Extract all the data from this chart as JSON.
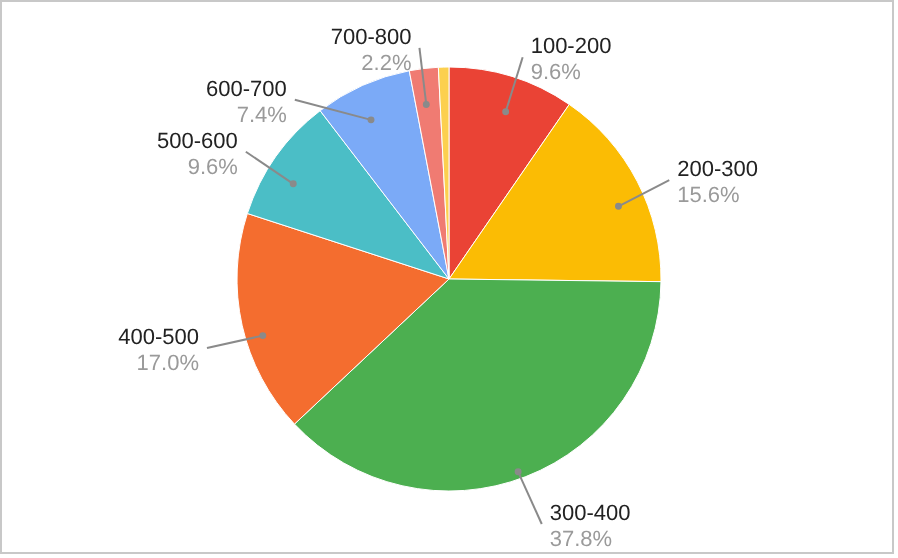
{
  "chart_data": {
    "type": "pie",
    "categories": [
      "100-200",
      "200-300",
      "300-400",
      "400-500",
      "500-600",
      "600-700",
      "700-800",
      null
    ],
    "values": [
      9.6,
      15.6,
      37.8,
      17.0,
      9.6,
      7.4,
      2.2,
      0.8
    ],
    "value_labels": [
      "9.6%",
      "15.6%",
      "37.8%",
      "17.0%",
      "9.6%",
      "7.4%",
      "2.2%",
      null
    ],
    "colors": [
      "#ea4335",
      "#fbbc04",
      "#4caf50",
      "#f46d2f",
      "#4bbec6",
      "#7baaf7",
      "#f07b72",
      "#fcd04f"
    ]
  }
}
